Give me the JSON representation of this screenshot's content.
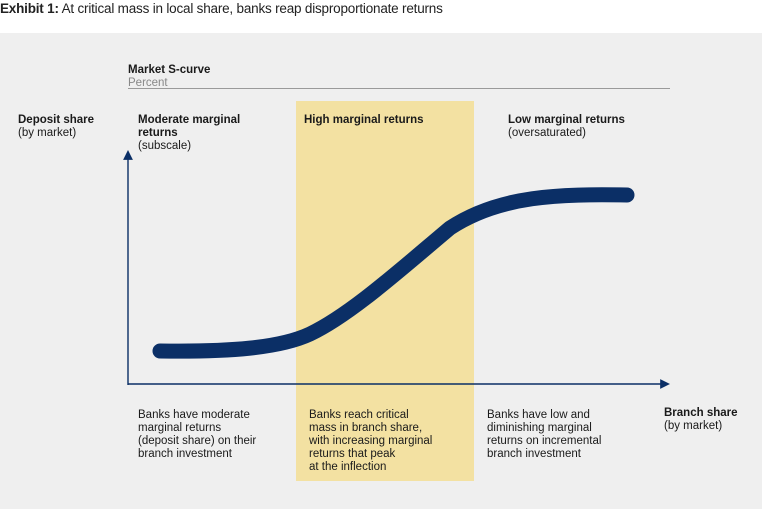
{
  "header": {
    "exhibit_label": "Exhibit 1:",
    "title": "At critical mass in local share, banks reap disproportionate returns"
  },
  "chart": {
    "title": "Market S-curve",
    "subtitle": "Percent",
    "y_axis_label": "Deposit share",
    "y_axis_sublabel": "(by market)",
    "x_axis_label": "Branch share",
    "x_axis_sublabel": "(by market)",
    "highlight_color": "#f3e1a2",
    "curve_color": "#0b2f66",
    "zones": [
      {
        "heading_line1": "Moderate marginal",
        "heading_line2": "returns",
        "sub": "(subscale)",
        "desc": [
          "Banks have moderate",
          "marginal returns",
          "(deposit share) on their",
          "branch investment"
        ]
      },
      {
        "heading_line1": "High marginal returns",
        "desc": [
          "Banks reach critical",
          "mass in branch share,",
          "with increasing marginal",
          "returns that peak",
          "at the inflection"
        ]
      },
      {
        "heading_line1": "Low marginal returns",
        "sub": "(oversaturated)",
        "desc": [
          "Banks have low and",
          "diminishing marginal",
          "returns on incremental",
          "branch investment"
        ]
      }
    ]
  }
}
